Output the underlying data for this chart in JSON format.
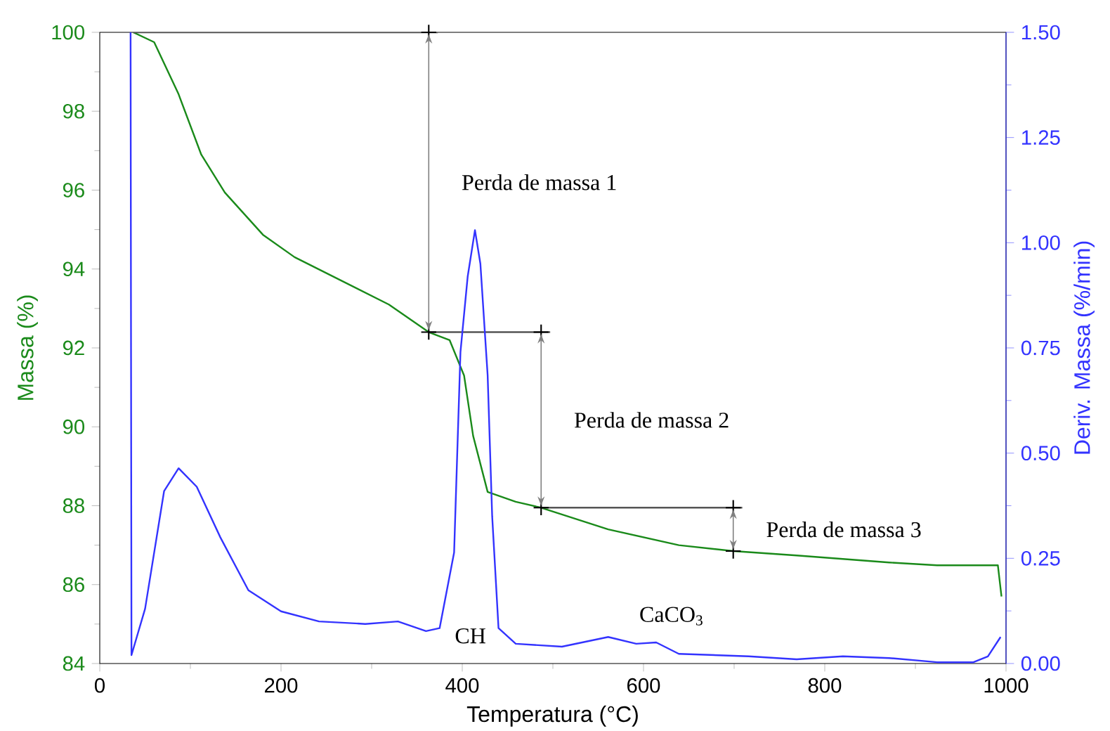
{
  "chart_data": {
    "type": "line",
    "xlabel": "Temperatura (°C)",
    "ylabel": "Massa (%)",
    "y2label": "Deriv. Massa (%/min)",
    "xlim": [
      0,
      1000
    ],
    "xticks": [
      0,
      200,
      400,
      600,
      800,
      1000
    ],
    "ylim": [
      84,
      100
    ],
    "yticks": [
      84,
      86,
      88,
      90,
      92,
      94,
      96,
      98,
      100
    ],
    "y2lim": [
      0,
      1.5
    ],
    "y2ticks": [
      {
        "value": 0,
        "label": "0.00"
      },
      {
        "value": 0.25,
        "label": "0.25"
      },
      {
        "value": 0.5,
        "label": "0.50"
      },
      {
        "value": 0.75,
        "label": "0.75"
      },
      {
        "value": 1,
        "label": "1.00"
      },
      {
        "value": 1.25,
        "label": "1.25"
      },
      {
        "value": 1.5,
        "label": "1.50"
      }
    ],
    "series": [
      {
        "color": "#1a8a1a",
        "x": [
          37,
          60,
          87,
          112,
          138,
          180,
          215,
          267,
          319,
          363,
          386,
          402,
          412,
          428,
          459,
          487,
          561,
          639,
          699,
          769,
          871,
          924,
          991,
          995
        ],
        "values": [
          100,
          99.75,
          98.43,
          96.9,
          95.94,
          94.87,
          94.3,
          93.7,
          93.1,
          92.4,
          92.2,
          91.3,
          89.77,
          88.35,
          88.1,
          87.95,
          87.4,
          87.0,
          86.85,
          86.74,
          86.56,
          86.49,
          86.49,
          85.7
        ]
      },
      {
        "color": "#3333ff",
        "axis": "y2",
        "x": [
          34,
          35,
          50,
          71,
          87,
          107,
          133,
          164,
          200,
          242,
          293,
          329,
          360,
          375,
          391,
          398,
          406,
          414,
          420,
          428,
          433,
          440,
          459,
          510,
          561,
          592,
          614,
          639,
          716,
          769,
          820,
          871,
          924,
          964,
          980,
          994
        ],
        "values": [
          1.5,
          0.02,
          0.13,
          0.41,
          0.464,
          0.42,
          0.3,
          0.174,
          0.124,
          0.1,
          0.094,
          0.1,
          0.077,
          0.084,
          0.264,
          0.74,
          0.92,
          1.03,
          0.95,
          0.685,
          0.35,
          0.084,
          0.047,
          0.04,
          0.063,
          0.047,
          0.05,
          0.023,
          0.017,
          0.01,
          0.017,
          0.013,
          0.003,
          0.003,
          0.017,
          0.063
        ]
      },
      {
        "color": "#555555",
        "x": [
          37,
          373
        ],
        "values": [
          100,
          100
        ]
      },
      {
        "color": "#555555",
        "x": [
          363,
          497
        ],
        "values": [
          92.4,
          92.4
        ]
      },
      {
        "color": "#555555",
        "x": [
          487,
          709
        ],
        "values": [
          87.95,
          87.95
        ]
      },
      {
        "type": "scatter",
        "marker": "cross",
        "color": "#000000",
        "x": [
          363,
          363,
          487,
          487,
          699,
          699
        ],
        "values": [
          100,
          92.4,
          92.4,
          87.95,
          87.95,
          86.85
        ]
      }
    ],
    "annotations": [
      "Perda de massa 1",
      "Perda de massa 2",
      "Perda de massa 3",
      "CH",
      "CaCO$_{3}$"
    ]
  }
}
